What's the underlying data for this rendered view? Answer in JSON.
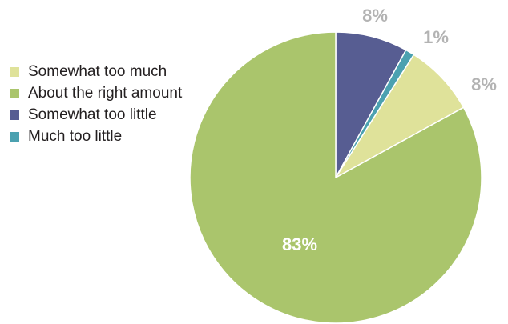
{
  "chart_data": {
    "type": "pie",
    "title": "",
    "categories": [
      "Somewhat too much",
      "About the right amount",
      "Somewhat too little",
      "Much too little"
    ],
    "values": [
      8,
      83,
      8,
      1
    ],
    "data_labels": [
      "8%",
      "83%",
      "8%",
      "1%"
    ],
    "colors": [
      "#dfe29a",
      "#aac56c",
      "#575d92",
      "#4ba1b0"
    ],
    "legend": "left",
    "start": "12 o'clock",
    "direction": "counter-clockwise",
    "label_colors": {
      "inside": "#ffffff",
      "outside": "#b3b3b3"
    }
  }
}
